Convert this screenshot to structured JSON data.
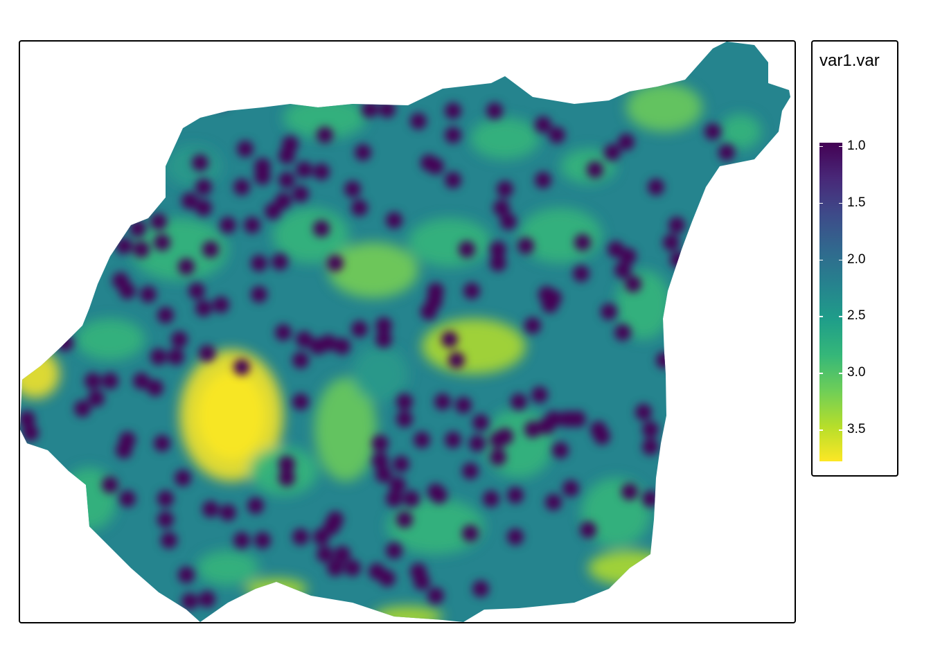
{
  "legend": {
    "title": "var1.var",
    "ticks": [
      "1.0",
      "1.5",
      "2.0",
      "2.5",
      "3.0",
      "3.5"
    ],
    "tick_values": [
      1.0,
      1.5,
      2.0,
      2.5,
      3.0,
      3.5
    ],
    "range": [
      0.97,
      3.78
    ],
    "palette": "viridis (reversed)",
    "colors": [
      "#440154",
      "#482878",
      "#3e4a89",
      "#31688e",
      "#26828e",
      "#1f9e89",
      "#35b779",
      "#6ece58",
      "#b5de2b",
      "#fde725"
    ]
  },
  "map": {
    "description_type": "kriging variance raster"
  }
}
